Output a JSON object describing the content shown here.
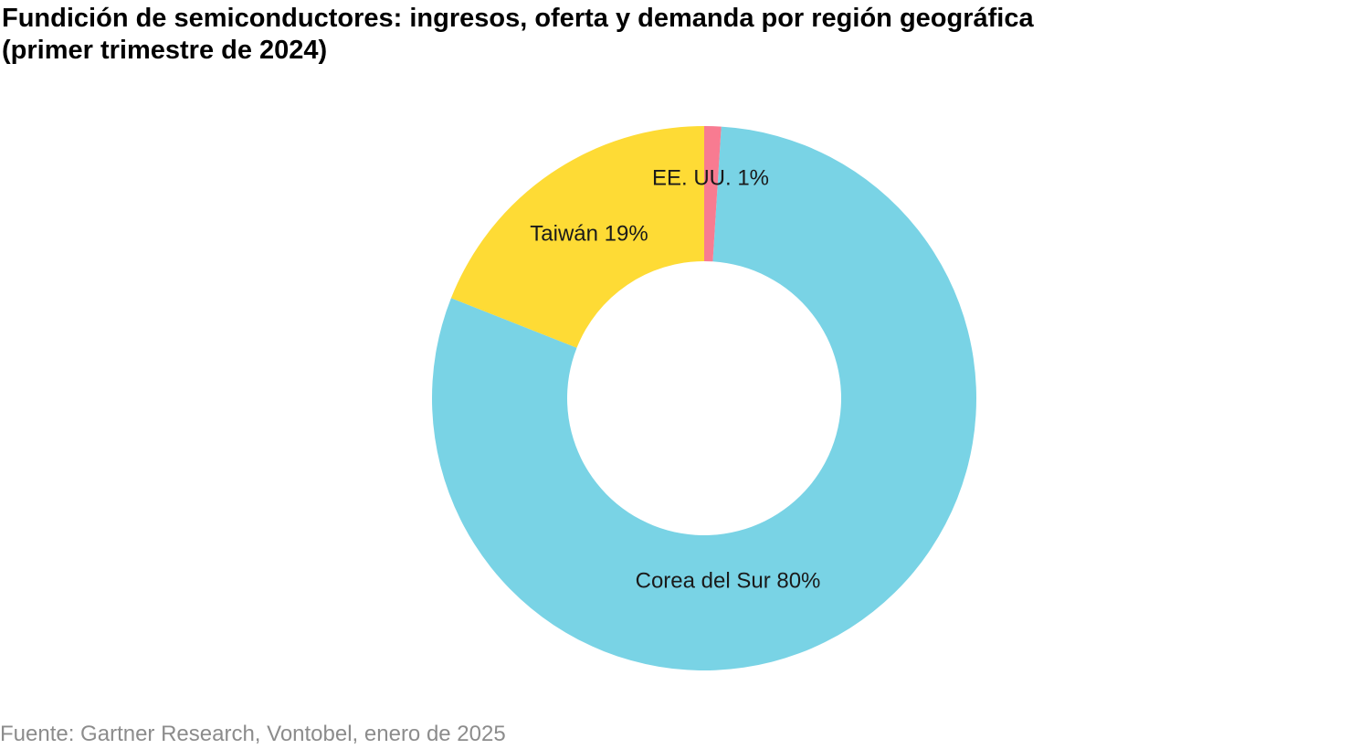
{
  "title_line1": "Fundición de semiconductores: ingresos, oferta y demanda por región geográfica",
  "title_line2": "(primer trimestre de 2024)",
  "source": "Fuente: Gartner Research, Vontobel, enero de 2025",
  "chart_data": {
    "type": "pie",
    "variant": "donut",
    "title": "Fundición de semiconductores: ingresos, oferta y demanda por región geográfica (primer trimestre de 2024)",
    "slices": [
      {
        "label": "Corea del Sur 80%",
        "value": 80,
        "color": "#79D3E5"
      },
      {
        "label": "Taiwán 19%",
        "value": 19,
        "color": "#FEDB35"
      },
      {
        "label": "EE. UU. 1%",
        "value": 1,
        "color": "#F87B91"
      }
    ],
    "start": "top, clockwise",
    "legend": "none"
  }
}
